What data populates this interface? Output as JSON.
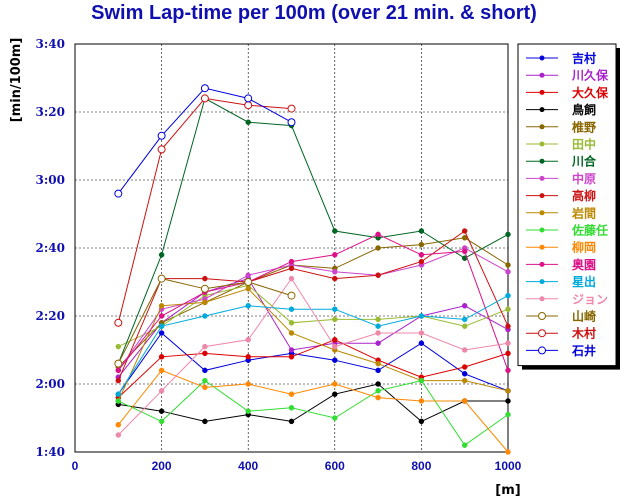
{
  "chart_data": {
    "type": "line",
    "title": "Swim Lap-time per 100m (over 21 min. & short)",
    "xlabel": "[m]",
    "ylabel": "[min/100m]",
    "xlim": [
      0,
      1000
    ],
    "ylim": [
      100,
      220
    ],
    "x_ticks": [
      0,
      200,
      400,
      600,
      800,
      1000
    ],
    "y_ticks": [
      {
        "value": 220,
        "label": "3:40"
      },
      {
        "value": 200,
        "label": "3:20"
      },
      {
        "value": 180,
        "label": "3:00"
      },
      {
        "value": 160,
        "label": "2:40"
      },
      {
        "value": 140,
        "label": "2:20"
      },
      {
        "value": 120,
        "label": "2:00"
      },
      {
        "value": 100,
        "label": "1:40"
      }
    ],
    "grid": true,
    "legend_position": "right",
    "series": [
      {
        "name": "吉村",
        "color": "#0000dd",
        "marker": "filled",
        "x": [
          100,
          200,
          300,
          400,
          500,
          600,
          700,
          800,
          900,
          1000
        ],
        "y": [
          117,
          135,
          124,
          127,
          129,
          127,
          124,
          132,
          123,
          118
        ]
      },
      {
        "name": "川久保",
        "color": "#aa22cc",
        "marker": "filled",
        "x": [
          100,
          200,
          300,
          400,
          500,
          600,
          700,
          800,
          900,
          1000
        ],
        "y": [
          122,
          138,
          147,
          151,
          130,
          132,
          132,
          140,
          143,
          136
        ]
      },
      {
        "name": "大久保",
        "color": "#dd0000",
        "marker": "filled",
        "x": [
          100,
          200,
          300,
          400,
          500,
          600,
          700,
          800,
          900,
          1000
        ],
        "y": [
          116,
          128,
          129,
          128,
          128,
          133,
          127,
          122,
          125,
          129
        ]
      },
      {
        "name": "鳥飼",
        "color": "#000000",
        "marker": "filled",
        "x": [
          100,
          200,
          300,
          400,
          500,
          600,
          700,
          800,
          900,
          1000
        ],
        "y": [
          114,
          112,
          109,
          111,
          109,
          117,
          120,
          109,
          115,
          115
        ]
      },
      {
        "name": "椎野",
        "color": "#886600",
        "marker": "filled",
        "x": [
          100,
          200,
          300,
          400,
          500,
          600,
          700,
          800,
          900,
          1000
        ],
        "y": [
          125,
          138,
          144,
          150,
          155,
          154,
          160,
          161,
          163,
          155
        ]
      },
      {
        "name": "田中",
        "color": "#99bb33",
        "marker": "filled",
        "x": [
          100,
          200,
          300,
          400,
          500,
          600,
          700,
          800,
          900,
          1000
        ],
        "y": [
          131,
          137,
          146,
          149,
          138,
          139,
          139,
          140,
          137,
          142
        ]
      },
      {
        "name": "川合",
        "color": "#006622",
        "marker": "filled",
        "x": [
          100,
          200,
          300,
          400,
          500,
          600,
          700,
          800,
          900,
          1000
        ],
        "y": [
          126,
          158,
          204,
          197,
          196,
          165,
          163,
          165,
          157,
          164
        ]
      },
      {
        "name": "中原",
        "color": "#cc44cc",
        "marker": "filled",
        "x": [
          100,
          200,
          300,
          400,
          500,
          600,
          700,
          800,
          900,
          1000
        ],
        "y": [
          124,
          142,
          145,
          152,
          155,
          153,
          152,
          155,
          160,
          153
        ]
      },
      {
        "name": "高柳",
        "color": "#cc1111",
        "marker": "filled",
        "x": [
          100,
          200,
          300,
          400,
          500,
          600,
          700,
          800,
          900,
          1000
        ],
        "y": [
          121,
          151,
          151,
          150,
          154,
          151,
          152,
          156,
          165,
          137
        ]
      },
      {
        "name": "岩間",
        "color": "#bb8800",
        "marker": "filled",
        "x": [
          100,
          200,
          300,
          400,
          500,
          600,
          700,
          800,
          900,
          1000
        ],
        "y": [
          115,
          143,
          144,
          148,
          135,
          130,
          126,
          121,
          121,
          118
        ]
      },
      {
        "name": "佐藤任",
        "color": "#33dd33",
        "marker": "filled",
        "x": [
          100,
          200,
          300,
          400,
          500,
          600,
          700,
          800,
          900,
          1000
        ],
        "y": [
          115,
          109,
          121,
          112,
          113,
          110,
          118,
          121,
          102,
          111
        ]
      },
      {
        "name": "柳岡",
        "color": "#ff8800",
        "marker": "filled",
        "x": [
          100,
          200,
          300,
          400,
          500,
          600,
          700,
          800,
          900,
          1000
        ],
        "y": [
          108,
          124,
          119,
          120,
          117,
          120,
          116,
          115,
          115,
          100
        ]
      },
      {
        "name": "奥園",
        "color": "#dd1188",
        "marker": "filled",
        "x": [
          100,
          200,
          300,
          400,
          500,
          600,
          700,
          800,
          900,
          1000
        ],
        "y": [
          124,
          140,
          147,
          150,
          156,
          158,
          164,
          158,
          159,
          124
        ]
      },
      {
        "name": "星出",
        "color": "#00aadd",
        "marker": "filled",
        "x": [
          100,
          200,
          300,
          400,
          500,
          600,
          700,
          800,
          900,
          1000
        ],
        "y": [
          117,
          137,
          140,
          143,
          142,
          142,
          137,
          140,
          139,
          146
        ]
      },
      {
        "name": "ジョン",
        "color": "#ee88aa",
        "marker": "filled",
        "x": [
          100,
          200,
          300,
          400,
          500,
          600,
          700,
          800,
          900,
          1000
        ],
        "y": [
          105,
          118,
          131,
          133,
          151,
          131,
          135,
          135,
          130,
          132
        ]
      },
      {
        "name": "山崎",
        "color": "#886600",
        "marker": "open",
        "x": [
          100,
          200,
          300,
          400,
          500
        ],
        "y": [
          126,
          151,
          148,
          150,
          146
        ]
      },
      {
        "name": "木村",
        "color": "#cc1111",
        "marker": "open",
        "x": [
          100,
          200,
          300,
          400,
          500
        ],
        "y": [
          138,
          189,
          204,
          202,
          201
        ]
      },
      {
        "name": "石井",
        "color": "#0000dd",
        "marker": "open",
        "x": [
          100,
          200,
          300,
          400,
          500
        ],
        "y": [
          176,
          193,
          207,
          204,
          197
        ]
      }
    ]
  }
}
